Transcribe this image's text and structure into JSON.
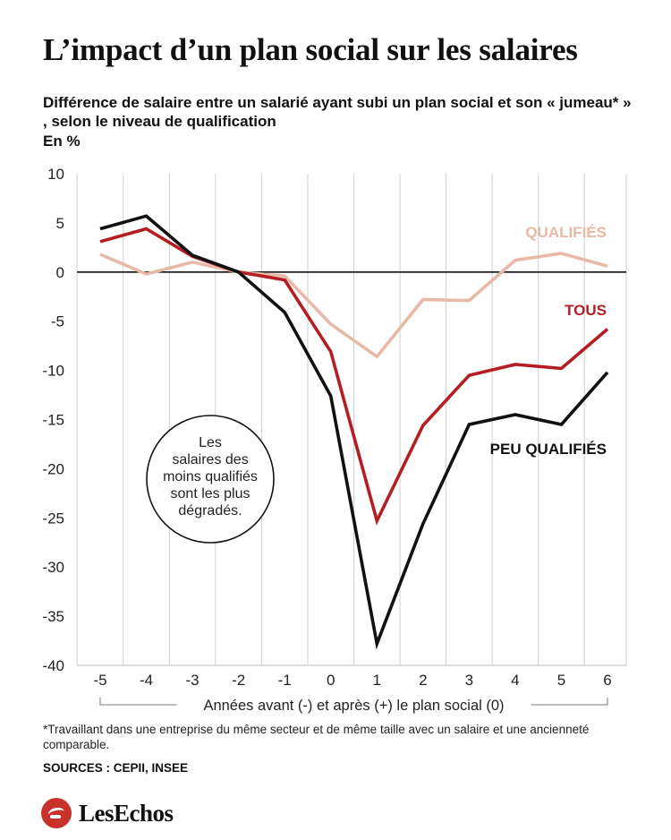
{
  "title": "L’impact d’un plan social sur les salaires",
  "subtitle": "Différence de salaire entre un salarié ayant subi un plan social et son « jumeau* » , selon le niveau de qualification",
  "unit": "En %",
  "footnote": "*Travaillant dans une entreprise du même secteur et de même taille avec un salaire et une ancienneté comparable.",
  "sources": "SOURCES : CEPII, INSEE",
  "brand": "LesEchos",
  "colors": {
    "qualifies": "#e8b9a6",
    "tous": "#b41e22",
    "peu": "#111111",
    "brand": "#c8322a"
  },
  "chart_data": {
    "type": "line",
    "xlabel": "Années avant (-) et après (+) le plan social (0)",
    "ylabel": "En %",
    "x": [
      -5,
      -4,
      -3,
      -2,
      -1,
      0,
      1,
      2,
      3,
      4,
      5,
      6
    ],
    "ylim": [
      -40,
      10
    ],
    "yticks": [
      10,
      5,
      0,
      -5,
      -10,
      -15,
      -20,
      -25,
      -30,
      -35,
      -40
    ],
    "grid": "vertical",
    "series": [
      {
        "name": "QUALIFIÉS",
        "color": "#e8b9a6",
        "values": [
          1.8,
          -0.2,
          1.0,
          0.0,
          -0.4,
          -5.3,
          -8.6,
          -2.8,
          -2.9,
          1.2,
          1.9,
          0.6
        ]
      },
      {
        "name": "TOUS",
        "color": "#b41e22",
        "values": [
          3.1,
          4.4,
          1.6,
          0.0,
          -0.8,
          -8.1,
          -25.3,
          -15.6,
          -10.5,
          -9.4,
          -9.8,
          -5.8
        ]
      },
      {
        "name": "PEU QUALIFIÉS",
        "color": "#111111",
        "values": [
          4.4,
          5.7,
          1.7,
          0.0,
          -4.1,
          -12.6,
          -37.8,
          -25.6,
          -15.5,
          -14.5,
          -15.5,
          -10.2
        ]
      }
    ],
    "annotation": "Les salaires des moins qualifiés sont les plus dégradés."
  }
}
